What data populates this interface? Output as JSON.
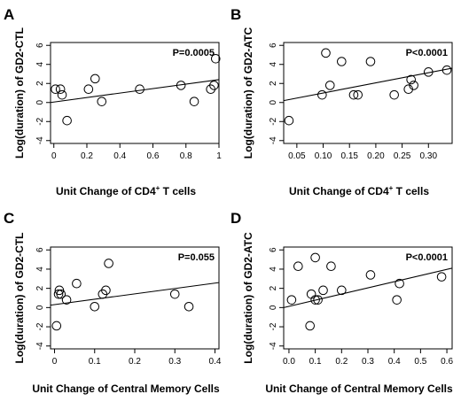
{
  "chart_data": [
    {
      "panel": "A",
      "type": "scatter",
      "ylabel": "Log(duration) of GD2-CTL",
      "xlabel_main": "Unit Change of CD4",
      "xlabel_sup": "+",
      "xlabel_tail": " T cells",
      "annotation": "P=0.0005",
      "xlim": [
        -0.02,
        1.0
      ],
      "ylim": [
        -4.3,
        6.3
      ],
      "x_ticks": [
        0,
        0.2,
        0.4,
        0.6,
        0.8,
        1.0
      ],
      "x_tick_labels": [
        "0",
        "0.2",
        "0.4",
        "0.6",
        "0.8",
        "1"
      ],
      "y_ticks": [
        -4,
        -2,
        0,
        2,
        4,
        6
      ],
      "y_tick_labels": [
        "-4",
        "-2",
        "0",
        "2",
        "4",
        "6"
      ],
      "points": [
        {
          "x": 0.01,
          "y": 1.4
        },
        {
          "x": 0.04,
          "y": 1.4
        },
        {
          "x": 0.05,
          "y": 0.8
        },
        {
          "x": 0.08,
          "y": -1.9
        },
        {
          "x": 0.21,
          "y": 1.4
        },
        {
          "x": 0.25,
          "y": 2.5
        },
        {
          "x": 0.29,
          "y": 0.1
        },
        {
          "x": 0.52,
          "y": 1.4
        },
        {
          "x": 0.77,
          "y": 1.8
        },
        {
          "x": 0.85,
          "y": 0.1
        },
        {
          "x": 0.95,
          "y": 1.4
        },
        {
          "x": 0.97,
          "y": 1.8
        },
        {
          "x": 0.98,
          "y": 4.6
        }
      ],
      "fit": {
        "x": [
          -0.02,
          1.0
        ],
        "y": [
          0.0,
          2.4
        ]
      }
    },
    {
      "panel": "B",
      "type": "scatter",
      "ylabel": "Log(duration) of GD2-ATC",
      "xlabel_main": "Unit Change of CD4",
      "xlabel_sup": "+",
      "xlabel_tail": " T cells",
      "annotation": "P<0.0001",
      "xlim": [
        0.025,
        0.345
      ],
      "ylim": [
        -4.3,
        6.3
      ],
      "x_ticks": [
        0.05,
        0.1,
        0.15,
        0.2,
        0.25,
        0.3
      ],
      "x_tick_labels": [
        "0.05",
        "0.10",
        "0.15",
        "0.20",
        "0.25",
        "0.30"
      ],
      "y_ticks": [
        -4,
        -2,
        0,
        2,
        4,
        6
      ],
      "y_tick_labels": [
        "-4",
        "-2",
        "0",
        "2",
        "4",
        "6"
      ],
      "points": [
        {
          "x": 0.035,
          "y": -1.9
        },
        {
          "x": 0.098,
          "y": 0.8
        },
        {
          "x": 0.105,
          "y": 5.2
        },
        {
          "x": 0.113,
          "y": 1.8
        },
        {
          "x": 0.135,
          "y": 4.3
        },
        {
          "x": 0.158,
          "y": 0.8
        },
        {
          "x": 0.166,
          "y": 0.8
        },
        {
          "x": 0.19,
          "y": 4.3
        },
        {
          "x": 0.235,
          "y": 0.8
        },
        {
          "x": 0.262,
          "y": 1.4
        },
        {
          "x": 0.267,
          "y": 2.4
        },
        {
          "x": 0.272,
          "y": 1.8
        },
        {
          "x": 0.3,
          "y": 3.2
        },
        {
          "x": 0.335,
          "y": 3.4
        }
      ],
      "fit": {
        "x": [
          0.025,
          0.345
        ],
        "y": [
          0.2,
          3.6
        ]
      }
    },
    {
      "panel": "C",
      "type": "scatter",
      "ylabel": "Log(duration) of GD2-CTL",
      "xlabel_main": "Unit Change of Central Memory Cells",
      "xlabel_sup": "",
      "xlabel_tail": "",
      "annotation": "P=0.055",
      "xlim": [
        -0.01,
        0.41
      ],
      "ylim": [
        -4.3,
        6.3
      ],
      "x_ticks": [
        0,
        0.1,
        0.2,
        0.3,
        0.4
      ],
      "x_tick_labels": [
        "0",
        "0.1",
        "0.2",
        "0.3",
        "0.4"
      ],
      "y_ticks": [
        -4,
        -2,
        0,
        2,
        4,
        6
      ],
      "y_tick_labels": [
        "-4",
        "-2",
        "0",
        "2",
        "4",
        "6"
      ],
      "points": [
        {
          "x": 0.005,
          "y": -1.9
        },
        {
          "x": 0.01,
          "y": 1.4
        },
        {
          "x": 0.012,
          "y": 1.8
        },
        {
          "x": 0.016,
          "y": 1.4
        },
        {
          "x": 0.03,
          "y": 0.8
        },
        {
          "x": 0.055,
          "y": 2.5
        },
        {
          "x": 0.1,
          "y": 0.1
        },
        {
          "x": 0.12,
          "y": 1.4
        },
        {
          "x": 0.128,
          "y": 1.8
        },
        {
          "x": 0.135,
          "y": 4.6
        },
        {
          "x": 0.3,
          "y": 1.4
        },
        {
          "x": 0.335,
          "y": 0.1
        }
      ],
      "fit": {
        "x": [
          -0.01,
          0.41
        ],
        "y": [
          0.25,
          2.6
        ]
      }
    },
    {
      "panel": "D",
      "type": "scatter",
      "ylabel": "Log(duration) of GD2-ATC",
      "xlabel_main": "Unit Change of Central Memory Cells",
      "xlabel_sup": "",
      "xlabel_tail": "",
      "annotation": "P<0.0001",
      "xlim": [
        -0.02,
        0.62
      ],
      "ylim": [
        -4.3,
        6.3
      ],
      "x_ticks": [
        0,
        0.1,
        0.2,
        0.3,
        0.4,
        0.5,
        0.6
      ],
      "x_tick_labels": [
        "0.0",
        "0.1",
        "0.2",
        "0.3",
        "0.4",
        "0.5",
        "0.6"
      ],
      "y_ticks": [
        -4,
        -2,
        0,
        2,
        4,
        6
      ],
      "y_tick_labels": [
        "-4",
        "-2",
        "0",
        "2",
        "4",
        "6"
      ],
      "points": [
        {
          "x": 0.01,
          "y": 0.8
        },
        {
          "x": 0.035,
          "y": 4.3
        },
        {
          "x": 0.08,
          "y": -1.9
        },
        {
          "x": 0.085,
          "y": 1.4
        },
        {
          "x": 0.1,
          "y": 5.2
        },
        {
          "x": 0.1,
          "y": 0.8
        },
        {
          "x": 0.11,
          "y": 0.8
        },
        {
          "x": 0.13,
          "y": 1.8
        },
        {
          "x": 0.16,
          "y": 4.3
        },
        {
          "x": 0.2,
          "y": 1.8
        },
        {
          "x": 0.31,
          "y": 3.4
        },
        {
          "x": 0.41,
          "y": 0.8
        },
        {
          "x": 0.42,
          "y": 2.5
        },
        {
          "x": 0.58,
          "y": 3.2
        }
      ],
      "fit": {
        "x": [
          -0.02,
          0.62
        ],
        "y": [
          0.0,
          4.1
        ]
      }
    }
  ]
}
